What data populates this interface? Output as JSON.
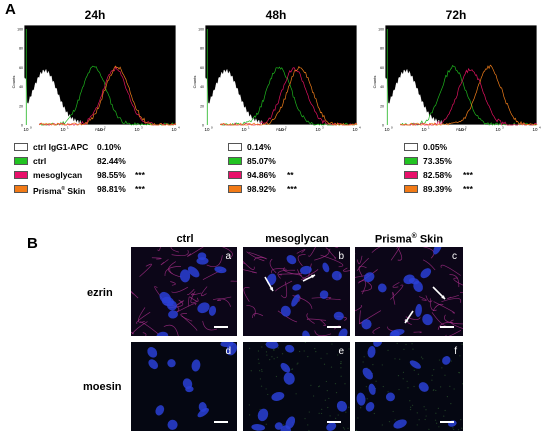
{
  "panel_a": {
    "letter": "A",
    "axis_text": {
      "y_label": "Counts",
      "x_label": "FL4-H",
      "y_ticks": [
        "100",
        "80",
        "60",
        "40",
        "20",
        "0"
      ],
      "x_ticks": [
        "10",
        "10",
        "10",
        "10",
        "10"
      ],
      "x_tick_exponents": [
        "0",
        "1",
        "2",
        "3",
        "4"
      ]
    },
    "series_colors": {
      "ctrl_igg1_apc": "#ffffff",
      "ctrl": "#1db31d",
      "mesoglycan": "#e0115f",
      "prisma_skin": "#f07d1a"
    },
    "timepoints": [
      {
        "title": "24h",
        "legend": [
          {
            "label": "ctrl IgG1-APC",
            "value": "0.10%",
            "sig": "",
            "swatch": "#ffffff"
          },
          {
            "label": "ctrl",
            "value": "82.44%",
            "sig": "",
            "swatch": "#22c322"
          },
          {
            "label": "mesoglycan",
            "value": "98.55%",
            "sig": "***",
            "swatch": "#e8106a"
          },
          {
            "label": "Prisma",
            "label_sup": "®",
            "label_rest": " Skin",
            "value": "98.81%",
            "sig": "***",
            "swatch": "#f27a16"
          }
        ]
      },
      {
        "title": "48h",
        "legend": [
          {
            "label": "",
            "value": "0.14%",
            "sig": "",
            "swatch": "#ffffff"
          },
          {
            "label": "",
            "value": "85.07%",
            "sig": "",
            "swatch": "#22c322"
          },
          {
            "label": "",
            "value": "94.86%",
            "sig": "**",
            "swatch": "#e8106a"
          },
          {
            "label": "",
            "value": "98.92%",
            "sig": "***",
            "swatch": "#f27a16"
          }
        ]
      },
      {
        "title": "72h",
        "legend": [
          {
            "label": "",
            "value": "0.05%",
            "sig": "",
            "swatch": "#ffffff"
          },
          {
            "label": "",
            "value": "73.35%",
            "sig": "",
            "swatch": "#22c322"
          },
          {
            "label": "",
            "value": "82.58%",
            "sig": "***",
            "swatch": "#e8106a"
          },
          {
            "label": "",
            "value": "89.39%",
            "sig": "***",
            "swatch": "#f27a16"
          }
        ]
      }
    ]
  },
  "panel_b": {
    "letter": "B",
    "columns": [
      {
        "label": "ctrl"
      },
      {
        "label": "mesoglycan"
      },
      {
        "label": "Prisma",
        "sup": "®",
        "rest": " Skin"
      }
    ],
    "rows": [
      {
        "label": "ezrin",
        "tiles": [
          "a",
          "b",
          "c"
        ]
      },
      {
        "label": "moesin",
        "tiles": [
          "d",
          "e",
          "f"
        ]
      }
    ]
  }
}
